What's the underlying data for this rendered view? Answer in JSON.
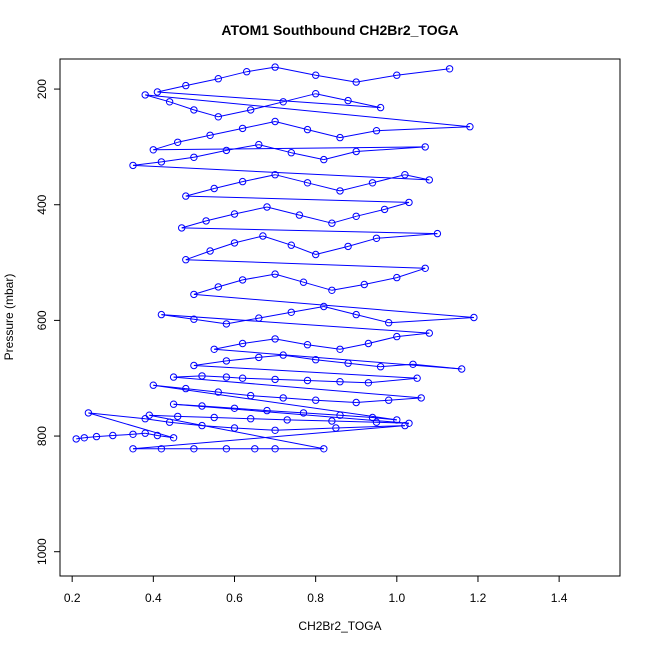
{
  "chart_data": {
    "type": "scatter",
    "title": "ATOM1 Southbound CH2Br2_TOGA",
    "xlabel": "CH2Br2_TOGA",
    "ylabel": "Pressure (mbar)",
    "xlim": [
      0.17,
      1.55
    ],
    "ylim": [
      1042,
      148
    ],
    "y_reversed": true,
    "x_ticks": [
      0.2,
      0.4,
      0.6,
      0.8,
      1.0,
      1.2,
      1.4
    ],
    "x_tick_labels": [
      "0.2",
      "0.4",
      "0.6",
      "0.8",
      "1.0",
      "1.2",
      "1.4"
    ],
    "y_ticks": [
      200,
      400,
      600,
      800,
      1000
    ],
    "y_tick_labels": [
      "200",
      "400",
      "600",
      "800",
      "1000"
    ],
    "series_color": "#0000ff",
    "marker": "open-circle",
    "connected": true,
    "grid": false,
    "series": [
      {
        "points": [
          [
            0.21,
            805
          ],
          [
            0.23,
            803
          ],
          [
            0.26,
            801
          ],
          [
            0.3,
            799
          ],
          [
            0.35,
            797
          ],
          [
            0.38,
            795
          ],
          [
            0.41,
            799
          ],
          [
            0.45,
            803
          ],
          [
            0.24,
            760
          ],
          [
            0.38,
            770
          ],
          [
            0.44,
            776
          ],
          [
            0.52,
            782
          ],
          [
            0.6,
            786
          ],
          [
            0.7,
            790
          ],
          [
            0.85,
            786
          ],
          [
            1.02,
            782
          ],
          [
            0.35,
            822
          ],
          [
            0.42,
            822
          ],
          [
            0.5,
            822
          ],
          [
            0.58,
            822
          ],
          [
            0.65,
            822
          ],
          [
            0.7,
            822
          ],
          [
            0.82,
            822
          ],
          [
            0.39,
            764
          ],
          [
            0.46,
            766
          ],
          [
            0.55,
            768
          ],
          [
            0.64,
            770
          ],
          [
            0.73,
            772
          ],
          [
            0.84,
            774
          ],
          [
            0.95,
            776
          ],
          [
            1.03,
            778
          ],
          [
            0.45,
            745
          ],
          [
            0.52,
            748
          ],
          [
            0.6,
            752
          ],
          [
            0.68,
            756
          ],
          [
            0.77,
            760
          ],
          [
            0.86,
            764
          ],
          [
            0.94,
            768
          ],
          [
            1.0,
            772
          ],
          [
            0.4,
            712
          ],
          [
            0.48,
            718
          ],
          [
            0.56,
            724
          ],
          [
            0.64,
            730
          ],
          [
            0.72,
            734
          ],
          [
            0.8,
            738
          ],
          [
            0.9,
            742
          ],
          [
            0.98,
            738
          ],
          [
            1.06,
            734
          ],
          [
            0.45,
            698
          ],
          [
            0.52,
            696
          ],
          [
            0.58,
            698
          ],
          [
            0.62,
            700
          ],
          [
            0.7,
            702
          ],
          [
            0.78,
            704
          ],
          [
            0.86,
            706
          ],
          [
            0.93,
            708
          ],
          [
            1.05,
            700
          ],
          [
            0.5,
            678
          ],
          [
            0.58,
            670
          ],
          [
            0.66,
            664
          ],
          [
            0.72,
            660
          ],
          [
            0.8,
            668
          ],
          [
            0.88,
            674
          ],
          [
            0.96,
            680
          ],
          [
            1.04,
            676
          ],
          [
            1.16,
            684
          ],
          [
            0.55,
            650
          ],
          [
            0.62,
            640
          ],
          [
            0.7,
            632
          ],
          [
            0.78,
            642
          ],
          [
            0.86,
            650
          ],
          [
            0.93,
            640
          ],
          [
            1.0,
            628
          ],
          [
            1.08,
            622
          ],
          [
            0.42,
            590
          ],
          [
            0.5,
            598
          ],
          [
            0.58,
            606
          ],
          [
            0.66,
            596
          ],
          [
            0.74,
            586
          ],
          [
            0.82,
            576
          ],
          [
            0.9,
            590
          ],
          [
            0.98,
            604
          ],
          [
            1.19,
            595
          ],
          [
            0.5,
            555
          ],
          [
            0.56,
            542
          ],
          [
            0.62,
            530
          ],
          [
            0.7,
            520
          ],
          [
            0.77,
            534
          ],
          [
            0.84,
            548
          ],
          [
            0.92,
            538
          ],
          [
            1.0,
            526
          ],
          [
            1.07,
            510
          ],
          [
            0.48,
            495
          ],
          [
            0.54,
            480
          ],
          [
            0.6,
            466
          ],
          [
            0.67,
            454
          ],
          [
            0.74,
            470
          ],
          [
            0.8,
            486
          ],
          [
            0.88,
            472
          ],
          [
            0.95,
            458
          ],
          [
            1.1,
            450
          ],
          [
            0.47,
            440
          ],
          [
            0.53,
            428
          ],
          [
            0.6,
            416
          ],
          [
            0.68,
            404
          ],
          [
            0.76,
            418
          ],
          [
            0.84,
            432
          ],
          [
            0.9,
            420
          ],
          [
            0.97,
            408
          ],
          [
            1.03,
            396
          ],
          [
            0.48,
            385
          ],
          [
            0.55,
            372
          ],
          [
            0.62,
            360
          ],
          [
            0.7,
            348
          ],
          [
            0.78,
            362
          ],
          [
            0.86,
            376
          ],
          [
            0.94,
            362
          ],
          [
            1.02,
            348
          ],
          [
            1.08,
            357
          ],
          [
            0.35,
            332
          ],
          [
            0.42,
            326
          ],
          [
            0.5,
            318
          ],
          [
            0.58,
            306
          ],
          [
            0.66,
            296
          ],
          [
            0.74,
            310
          ],
          [
            0.82,
            322
          ],
          [
            0.9,
            308
          ],
          [
            1.07,
            300
          ],
          [
            0.4,
            305
          ],
          [
            0.46,
            292
          ],
          [
            0.54,
            280
          ],
          [
            0.62,
            268
          ],
          [
            0.7,
            256
          ],
          [
            0.78,
            270
          ],
          [
            0.86,
            284
          ],
          [
            0.95,
            272
          ],
          [
            1.18,
            265
          ],
          [
            0.38,
            210
          ],
          [
            0.44,
            222
          ],
          [
            0.5,
            236
          ],
          [
            0.56,
            248
          ],
          [
            0.64,
            236
          ],
          [
            0.72,
            222
          ],
          [
            0.8,
            208
          ],
          [
            0.88,
            220
          ],
          [
            0.96,
            232
          ],
          [
            0.41,
            205
          ],
          [
            0.48,
            194
          ],
          [
            0.56,
            182
          ],
          [
            0.63,
            170
          ],
          [
            0.7,
            162
          ],
          [
            0.8,
            176
          ],
          [
            0.9,
            188
          ],
          [
            1.0,
            176
          ],
          [
            1.13,
            165
          ]
        ]
      }
    ]
  }
}
